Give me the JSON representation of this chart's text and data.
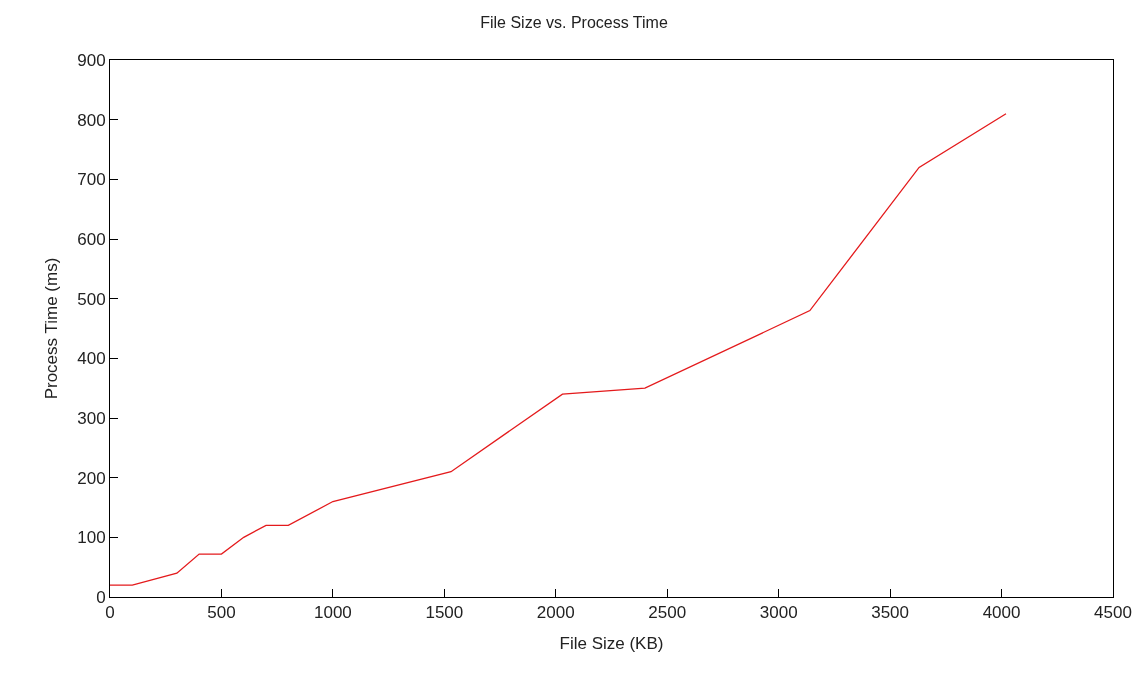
{
  "chart_data": {
    "type": "line",
    "title": "File Size vs. Process Time",
    "xlabel": "File Size (KB)",
    "ylabel": "Process Time (ms)",
    "x": [
      0,
      100,
      300,
      400,
      500,
      600,
      700,
      800,
      1000,
      1530,
      2030,
      2400,
      3140,
      3630,
      4020
    ],
    "series": [
      {
        "color": "#e41a1c",
        "values": [
          20,
          20,
          40,
          72,
          72,
          100,
          120,
          120,
          160,
          210,
          340,
          350,
          480,
          720,
          810
        ]
      }
    ],
    "xlim": [
      0,
      4500
    ],
    "xticks": [
      0,
      500,
      1000,
      1500,
      2000,
      2500,
      3000,
      3500,
      4000,
      4500
    ],
    "ylim": [
      0,
      900
    ],
    "yticks": [
      0,
      100,
      200,
      300,
      400,
      500,
      600,
      700,
      800,
      900
    ],
    "marker": "none",
    "line_style": "solid"
  }
}
